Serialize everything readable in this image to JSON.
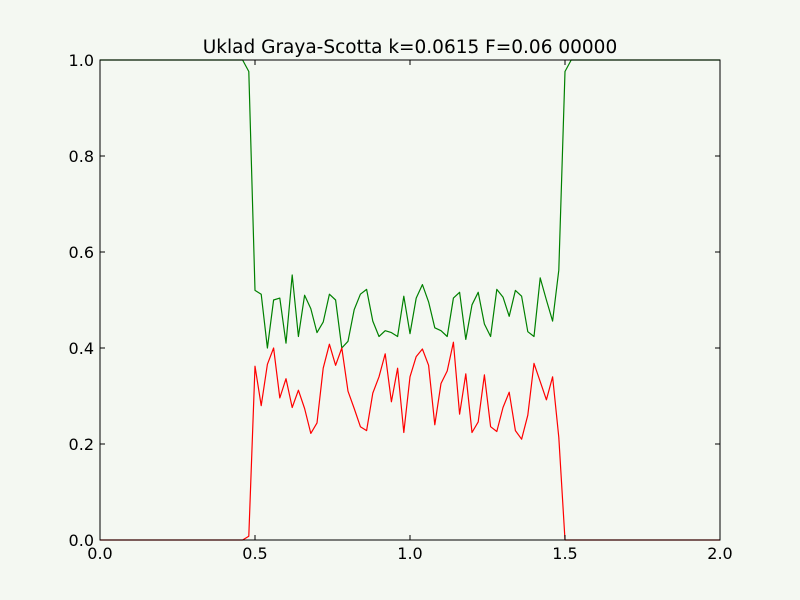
{
  "chart_data": {
    "type": "line",
    "title": "Uklad Graya-Scotta k=0.0615 F=0.06 00000",
    "xlabel": "",
    "ylabel": "",
    "xlim": [
      0.0,
      2.0
    ],
    "ylim": [
      0.0,
      1.0
    ],
    "grid": false,
    "xticks": [
      0.0,
      0.5,
      1.0,
      1.5,
      2.0
    ],
    "xtick_labels": [
      "0.0",
      "0.5",
      "1.0",
      "1.5",
      "2.0"
    ],
    "yticks": [
      0.0,
      0.2,
      0.4,
      0.6,
      0.8,
      1.0
    ],
    "ytick_labels": [
      "0.0",
      "0.2",
      "0.4",
      "0.6",
      "0.8",
      "1.0"
    ],
    "colors": {
      "series_u": "#008000",
      "series_v": "#ff0000",
      "frame": "#000000",
      "background": "#f4f8f2"
    },
    "series": [
      {
        "color": "#008000",
        "x": [
          0.0,
          0.46,
          0.48,
          0.5,
          0.52,
          0.54,
          0.56,
          0.58,
          0.6,
          0.62,
          0.64,
          0.66,
          0.68,
          0.7,
          0.72,
          0.74,
          0.76,
          0.78,
          0.8,
          0.82,
          0.84,
          0.86,
          0.88,
          0.9,
          0.92,
          0.94,
          0.96,
          0.98,
          1.0,
          1.02,
          1.04,
          1.06,
          1.08,
          1.1,
          1.12,
          1.14,
          1.16,
          1.18,
          1.2,
          1.22,
          1.24,
          1.26,
          1.28,
          1.3,
          1.32,
          1.34,
          1.36,
          1.38,
          1.4,
          1.42,
          1.44,
          1.46,
          1.48,
          1.5,
          1.52,
          1.54,
          2.0
        ],
        "values": [
          1.0,
          1.0,
          0.976,
          0.52,
          0.512,
          0.4,
          0.5,
          0.504,
          0.41,
          0.552,
          0.424,
          0.51,
          0.482,
          0.432,
          0.454,
          0.512,
          0.5,
          0.4,
          0.414,
          0.48,
          0.512,
          0.522,
          0.456,
          0.424,
          0.436,
          0.432,
          0.424,
          0.508,
          0.43,
          0.504,
          0.532,
          0.496,
          0.442,
          0.436,
          0.424,
          0.504,
          0.516,
          0.418,
          0.49,
          0.516,
          0.45,
          0.424,
          0.522,
          0.506,
          0.466,
          0.52,
          0.508,
          0.434,
          0.424,
          0.546,
          0.5,
          0.456,
          0.562,
          0.976,
          1.0,
          1.0,
          1.0
        ]
      },
      {
        "color": "#ff0000",
        "x": [
          0.0,
          0.46,
          0.48,
          0.5,
          0.52,
          0.54,
          0.56,
          0.58,
          0.6,
          0.62,
          0.64,
          0.66,
          0.68,
          0.7,
          0.72,
          0.74,
          0.76,
          0.78,
          0.8,
          0.82,
          0.84,
          0.86,
          0.88,
          0.9,
          0.92,
          0.94,
          0.96,
          0.98,
          1.0,
          1.02,
          1.04,
          1.06,
          1.08,
          1.1,
          1.12,
          1.14,
          1.16,
          1.18,
          1.2,
          1.22,
          1.24,
          1.26,
          1.28,
          1.3,
          1.32,
          1.34,
          1.36,
          1.38,
          1.4,
          1.42,
          1.44,
          1.46,
          1.48,
          1.5,
          1.52,
          1.54,
          2.0
        ],
        "values": [
          0.0,
          0.0,
          0.008,
          0.362,
          0.28,
          0.366,
          0.4,
          0.296,
          0.336,
          0.276,
          0.312,
          0.274,
          0.222,
          0.244,
          0.358,
          0.408,
          0.364,
          0.4,
          0.31,
          0.274,
          0.236,
          0.228,
          0.306,
          0.34,
          0.388,
          0.288,
          0.358,
          0.224,
          0.34,
          0.382,
          0.398,
          0.364,
          0.24,
          0.326,
          0.352,
          0.412,
          0.262,
          0.346,
          0.224,
          0.246,
          0.344,
          0.236,
          0.226,
          0.276,
          0.308,
          0.228,
          0.21,
          0.26,
          0.368,
          0.33,
          0.292,
          0.34,
          0.214,
          0.0,
          0.0,
          0.0,
          0.0
        ]
      }
    ]
  }
}
